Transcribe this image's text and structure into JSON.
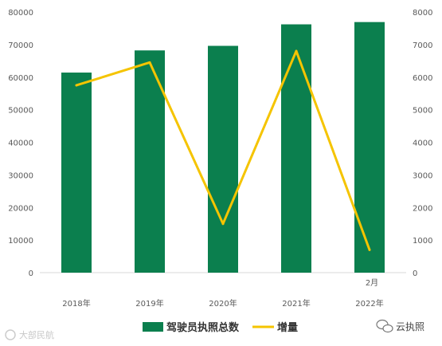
{
  "chart_data": {
    "type": "bar",
    "categories": [
      "2018年",
      "2019年",
      "2020年",
      "2021年",
      "2022年"
    ],
    "category_note": {
      "category": "2022年",
      "text": "2月"
    },
    "series": [
      {
        "name": "驾驶员执照总数",
        "kind": "bar",
        "axis": "left",
        "color": "#0b7f4e",
        "values": [
          61400,
          68200,
          69600,
          76200,
          76900
        ]
      },
      {
        "name": "增量",
        "kind": "line",
        "axis": "right",
        "color": "#f5c400",
        "values": [
          5750,
          6450,
          1500,
          6800,
          700
        ]
      }
    ],
    "y_left": {
      "min": 0,
      "max": 80000,
      "step": 10000,
      "ticks": [
        "0",
        "10000",
        "20000",
        "30000",
        "40000",
        "50000",
        "60000",
        "70000",
        "80000"
      ]
    },
    "y_right": {
      "min": 0,
      "max": 8000,
      "step": 1000,
      "ticks": [
        "0",
        "1000",
        "2000",
        "3000",
        "4000",
        "5000",
        "6000",
        "7000",
        "8000"
      ]
    },
    "grid": false,
    "legend_position": "bottom"
  },
  "watermark": {
    "left_text": "大部民航",
    "right_text": "云执照"
  }
}
